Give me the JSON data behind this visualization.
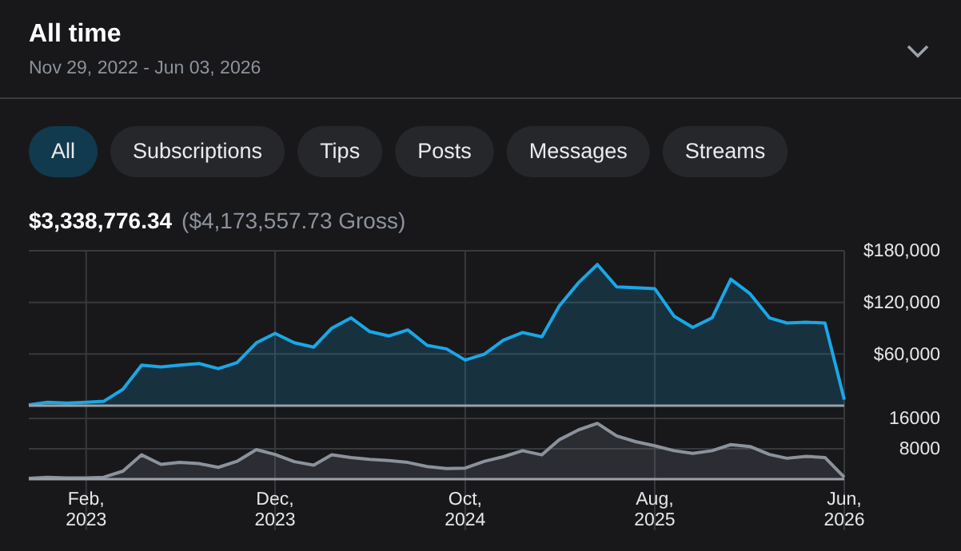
{
  "chart_data": [
    {
      "type": "area",
      "title": "All time",
      "subtitle": "Nov 29, 2022 - Jun 03, 2026",
      "annotations": [
        "All",
        "Subscriptions",
        "Tips",
        "Posts",
        "Messages",
        "Streams",
        "$3,338,776.34",
        "($4,173,557.73 Gross)"
      ],
      "x": [
        "2022-11",
        "2022-12",
        "2023-01",
        "2023-02",
        "2023-03",
        "2023-04",
        "2023-05",
        "2023-06",
        "2023-07",
        "2023-08",
        "2023-09",
        "2023-10",
        "2023-11",
        "2023-12",
        "2024-01",
        "2024-02",
        "2024-03",
        "2024-04",
        "2024-05",
        "2024-06",
        "2024-07",
        "2024-08",
        "2024-09",
        "2024-10",
        "2024-11",
        "2024-12",
        "2025-01",
        "2025-02",
        "2025-03",
        "2025-04",
        "2025-05",
        "2025-06",
        "2025-07",
        "2025-08",
        "2025-09",
        "2025-10",
        "2025-11",
        "2025-12",
        "2026-01",
        "2026-02",
        "2026-03",
        "2026-04",
        "2026-05",
        "2026-06"
      ],
      "series": [
        {
          "color": "#1aa7e6",
          "values": [
            1000,
            4000,
            3000,
            4000,
            5000,
            19000,
            47000,
            45000,
            47000,
            49000,
            43000,
            50000,
            73000,
            84000,
            73000,
            68000,
            90000,
            102000,
            86000,
            81000,
            88000,
            70000,
            66000,
            53000,
            60000,
            76000,
            85000,
            80000,
            116000,
            143000,
            164000,
            138000,
            137000,
            136000,
            104000,
            91000,
            102000,
            147000,
            130000,
            102000,
            96000,
            97000,
            96000,
            7000
          ]
        }
      ],
      "xlim": [
        "2022-11",
        "2026-06"
      ],
      "xticks": [
        {
          "value": "2023-02",
          "label": null
        },
        {
          "value": "2023-12",
          "label": null
        },
        {
          "value": "2024-10",
          "label": null
        },
        {
          "value": "2025-08",
          "label": null
        },
        {
          "value": "2026-06",
          "label": null
        }
      ],
      "ylim": [
        0,
        180000
      ],
      "yticks": [
        {
          "value": 60000,
          "label": "$60,000"
        },
        {
          "value": 120000,
          "label": "$120,000"
        },
        {
          "value": 180000,
          "label": "$180,000"
        }
      ],
      "grid": true,
      "tick_labels": "y"
    },
    {
      "type": "area",
      "x": [
        "2022-11",
        "2022-12",
        "2023-01",
        "2023-02",
        "2023-03",
        "2023-04",
        "2023-05",
        "2023-06",
        "2023-07",
        "2023-08",
        "2023-09",
        "2023-10",
        "2023-11",
        "2023-12",
        "2024-01",
        "2024-02",
        "2024-03",
        "2024-04",
        "2024-05",
        "2024-06",
        "2024-07",
        "2024-08",
        "2024-09",
        "2024-10",
        "2024-11",
        "2024-12",
        "2025-01",
        "2025-02",
        "2025-03",
        "2025-04",
        "2025-05",
        "2025-06",
        "2025-07",
        "2025-08",
        "2025-09",
        "2025-10",
        "2025-11",
        "2025-12",
        "2026-01",
        "2026-02",
        "2026-03",
        "2026-04",
        "2026-05",
        "2026-06"
      ],
      "series": [
        {
          "color": "#8b929b",
          "values": [
            200,
            500,
            300,
            300,
            500,
            2100,
            6400,
            3900,
            4400,
            4100,
            3100,
            4700,
            7800,
            6500,
            4600,
            3700,
            6400,
            5700,
            5200,
            4900,
            4400,
            3300,
            2800,
            2900,
            4700,
            5900,
            7500,
            6400,
            10400,
            13000,
            14700,
            11400,
            9900,
            8800,
            7500,
            6800,
            7500,
            9100,
            8600,
            6500,
            5500,
            6000,
            5700,
            500
          ]
        }
      ],
      "xlim": [
        "2022-11",
        "2026-06"
      ],
      "xticks": [
        {
          "value": "2023-02",
          "label": "Feb, 2023"
        },
        {
          "value": "2023-12",
          "label": "Dec, 2023"
        },
        {
          "value": "2024-10",
          "label": "Oct, 2024"
        },
        {
          "value": "2025-08",
          "label": "Aug, 2025"
        },
        {
          "value": "2026-06",
          "label": "Jun, 2026"
        }
      ],
      "ylim": [
        0,
        16000
      ],
      "yticks": [
        8000,
        16000
      ],
      "grid": true
    }
  ]
}
